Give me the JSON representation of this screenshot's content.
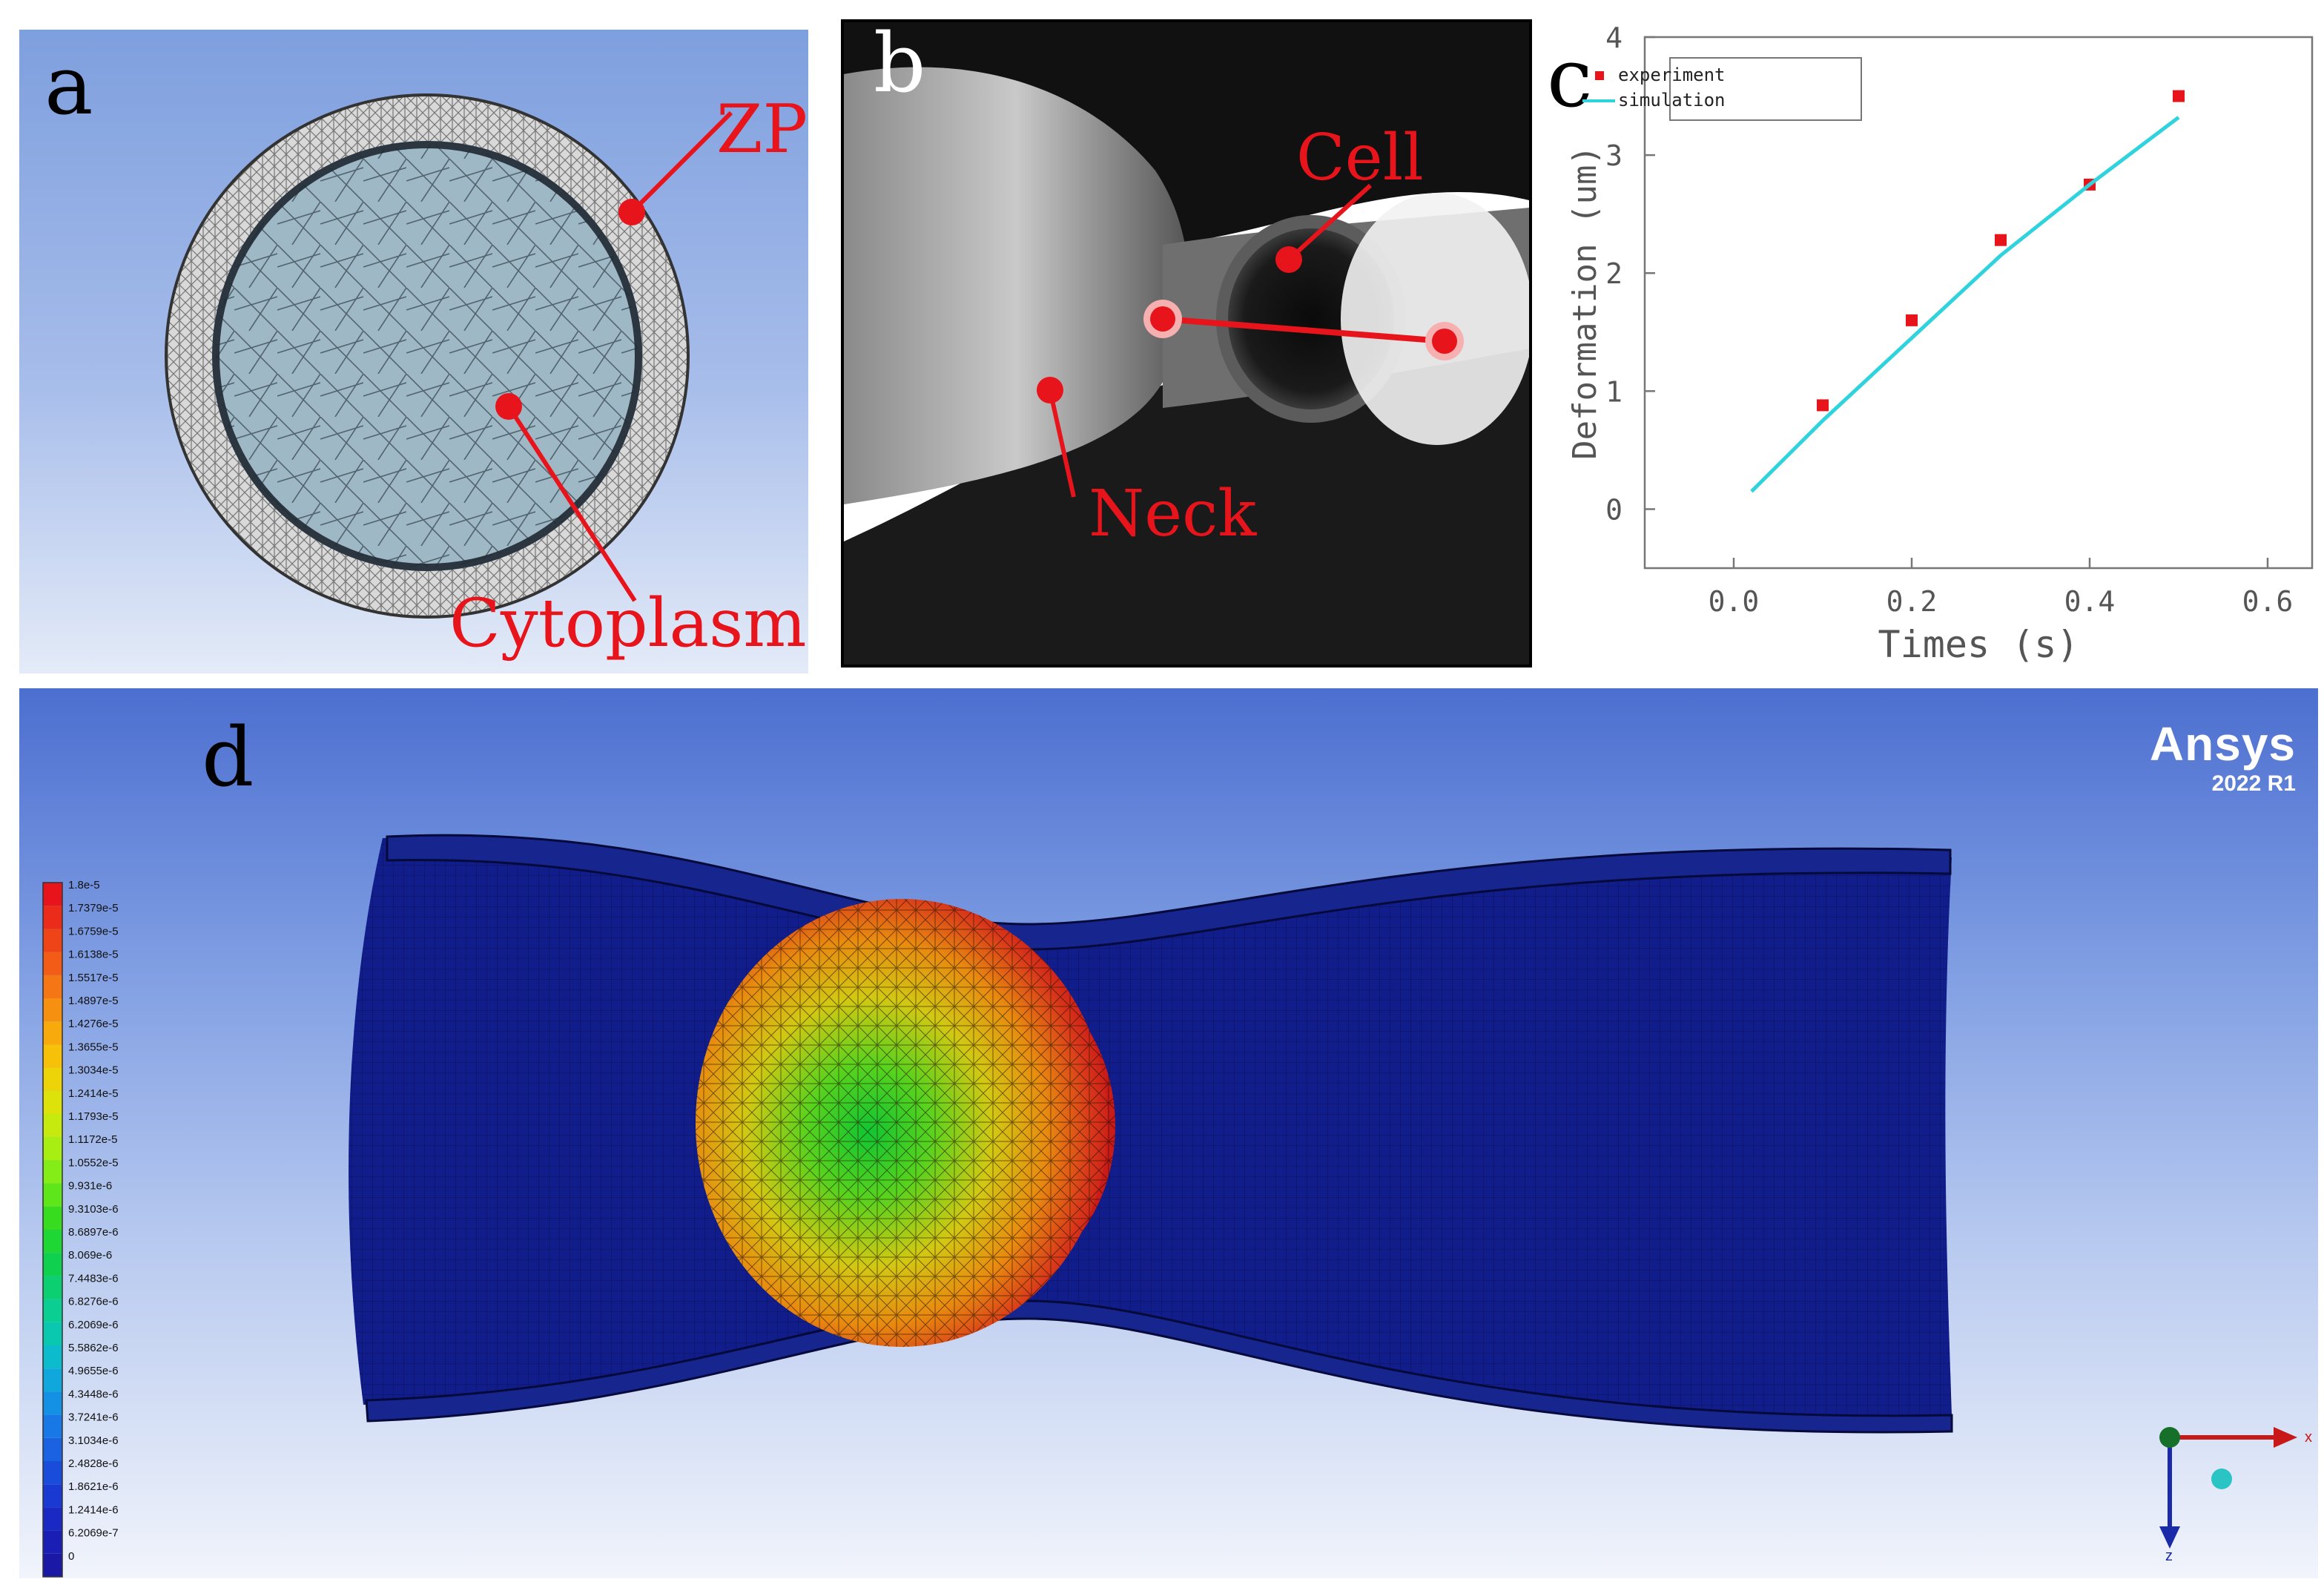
{
  "panel_a": {
    "label": "a",
    "zp_label": "ZP",
    "cytoplasm_label": "Cytoplasm"
  },
  "panel_b": {
    "label": "b",
    "cell_label": "Cell",
    "neck_label": "Neck"
  },
  "panel_c": {
    "label": "c"
  },
  "chart_data": {
    "type": "scatter",
    "xlabel": "Times (s)",
    "ylabel": "Deformation (um)",
    "xlim": [
      -0.1,
      0.65
    ],
    "ylim": [
      -0.5,
      4
    ],
    "x_ticks": [
      "0.0",
      "0.2",
      "0.4",
      "0.6"
    ],
    "y_ticks": [
      "0",
      "1",
      "2",
      "3",
      "4"
    ],
    "grid": false,
    "legend": "top-left",
    "series": [
      {
        "name": "experiment",
        "kind": "points",
        "color": "#e8141c",
        "x": [
          0.1,
          0.2,
          0.3,
          0.4,
          0.5
        ],
        "y": [
          0.88,
          1.6,
          2.28,
          2.75,
          3.5
        ]
      },
      {
        "name": "simulation",
        "kind": "line",
        "color": "#2fd3de",
        "x": [
          0.02,
          0.1,
          0.2,
          0.3,
          0.4,
          0.5
        ],
        "y": [
          0.15,
          0.75,
          1.45,
          2.15,
          2.75,
          3.32
        ]
      }
    ]
  },
  "panel_d": {
    "label": "d",
    "brand": {
      "name": "Ansys",
      "version": "2022 R1"
    },
    "axis_x": "x",
    "axis_z": "z",
    "legend_values": [
      "1.8e-5",
      "1.7379e-5",
      "1.6759e-5",
      "1.6138e-5",
      "1.5517e-5",
      "1.4897e-5",
      "1.4276e-5",
      "1.3655e-5",
      "1.3034e-5",
      "1.2414e-5",
      "1.1793e-5",
      "1.1172e-5",
      "1.0552e-5",
      "9.931e-6",
      "9.3103e-6",
      "8.6897e-6",
      "8.069e-6",
      "7.4483e-6",
      "6.8276e-6",
      "6.2069e-6",
      "5.5862e-6",
      "4.9655e-6",
      "4.3448e-6",
      "3.7241e-6",
      "3.1034e-6",
      "2.4828e-6",
      "1.8621e-6",
      "1.2414e-6",
      "6.2069e-7",
      "0"
    ],
    "legend_colors": [
      "#e8141c",
      "#ec2c1a",
      "#ef4418",
      "#f25c16",
      "#f47614",
      "#f69010",
      "#f8aa0c",
      "#f6c108",
      "#ecd408",
      "#dce20a",
      "#c6ea0e",
      "#a8ee12",
      "#84ec16",
      "#5ee61a",
      "#38dc1e",
      "#1ed634",
      "#10d050",
      "#0ccf72",
      "#0ace92",
      "#0ac8b0",
      "#0cbccc",
      "#10a8dc",
      "#1490e4",
      "#1878e6",
      "#1a62e2",
      "#1a4cdc",
      "#1a38d2",
      "#1a28c4",
      "#1a1eb4",
      "#1a18a4"
    ]
  }
}
